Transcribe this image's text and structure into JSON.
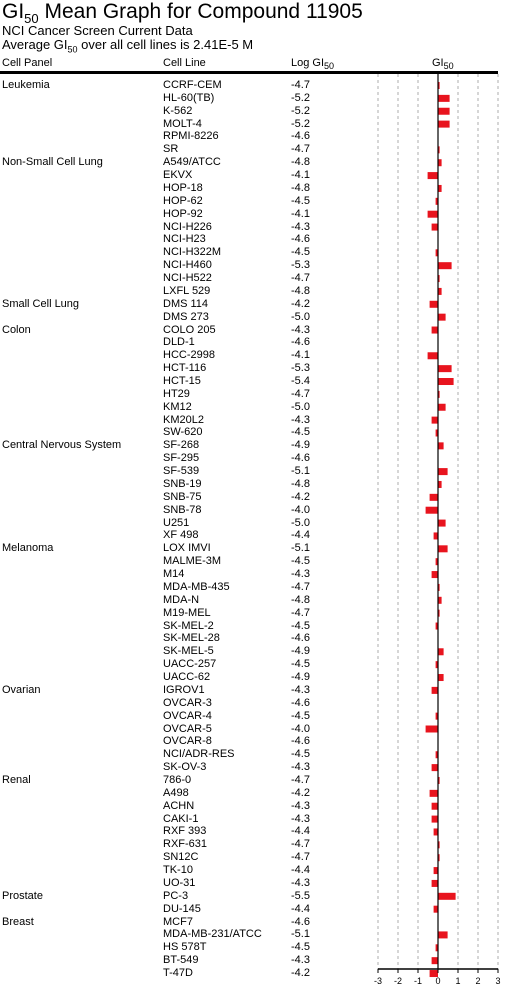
{
  "title_main": "GI",
  "title_sub": "50",
  "title_rest": " Mean Graph for Compound 11905",
  "subtitle": "NCI Cancer Screen Current Data",
  "average_pre": "Average GI",
  "average_sub": "50",
  "average_post": " over all cell lines is 2.41E-5 M",
  "headers": {
    "cell_panel": "Cell Panel",
    "cell_line": "Cell Line",
    "log_main": "Log GI",
    "log_sub": "50",
    "gi_main": "GI",
    "gi_sub": "50"
  },
  "colors": {
    "bar": "#e8141e",
    "text": "#000000",
    "grid": "#9a9a9a"
  },
  "chart_data": {
    "type": "bar",
    "title": "GI50 Mean Graph for Compound 11905",
    "mean_log_gi50": -4.62,
    "xlim": [
      -3,
      3
    ],
    "x_ticks": [
      "-3",
      "-2",
      "-1",
      "0",
      "1",
      "2",
      "3"
    ],
    "grid": true,
    "rows": [
      {
        "panel": "Leukemia",
        "line": "CCRF-CEM",
        "log": "-4.7",
        "dev": 0.08
      },
      {
        "panel": "",
        "line": "HL-60(TB)",
        "log": "-5.2",
        "dev": 0.58
      },
      {
        "panel": "",
        "line": "K-562",
        "log": "-5.2",
        "dev": 0.58
      },
      {
        "panel": "",
        "line": "MOLT-4",
        "log": "-5.2",
        "dev": 0.58
      },
      {
        "panel": "",
        "line": "RPMI-8226",
        "log": "-4.6",
        "dev": -0.02
      },
      {
        "panel": "",
        "line": "SR",
        "log": "-4.7",
        "dev": 0.08
      },
      {
        "panel": "Non-Small Cell Lung",
        "line": "A549/ATCC",
        "log": "-4.8",
        "dev": 0.18
      },
      {
        "panel": "",
        "line": "EKVX",
        "log": "-4.1",
        "dev": -0.52
      },
      {
        "panel": "",
        "line": "HOP-18",
        "log": "-4.8",
        "dev": 0.18
      },
      {
        "panel": "",
        "line": "HOP-62",
        "log": "-4.5",
        "dev": -0.12
      },
      {
        "panel": "",
        "line": "HOP-92",
        "log": "-4.1",
        "dev": -0.52
      },
      {
        "panel": "",
        "line": "NCI-H226",
        "log": "-4.3",
        "dev": -0.32
      },
      {
        "panel": "",
        "line": "NCI-H23",
        "log": "-4.6",
        "dev": -0.02
      },
      {
        "panel": "",
        "line": "NCI-H322M",
        "log": "-4.5",
        "dev": -0.12
      },
      {
        "panel": "",
        "line": "NCI-H460",
        "log": "-5.3",
        "dev": 0.68
      },
      {
        "panel": "",
        "line": "NCI-H522",
        "log": "-4.7",
        "dev": 0.08
      },
      {
        "panel": "",
        "line": "LXFL 529",
        "log": "-4.8",
        "dev": 0.18
      },
      {
        "panel": "Small Cell Lung",
        "line": "DMS 114",
        "log": "-4.2",
        "dev": -0.42
      },
      {
        "panel": "",
        "line": "DMS 273",
        "log": "-5.0",
        "dev": 0.38
      },
      {
        "panel": "Colon",
        "line": "COLO 205",
        "log": "-4.3",
        "dev": -0.32
      },
      {
        "panel": "",
        "line": "DLD-1",
        "log": "-4.6",
        "dev": -0.02
      },
      {
        "panel": "",
        "line": "HCC-2998",
        "log": "-4.1",
        "dev": -0.52
      },
      {
        "panel": "",
        "line": "HCT-116",
        "log": "-5.3",
        "dev": 0.68
      },
      {
        "panel": "",
        "line": "HCT-15",
        "log": "-5.4",
        "dev": 0.78
      },
      {
        "panel": "",
        "line": "HT29",
        "log": "-4.7",
        "dev": 0.08
      },
      {
        "panel": "",
        "line": "KM12",
        "log": "-5.0",
        "dev": 0.38
      },
      {
        "panel": "",
        "line": "KM20L2",
        "log": "-4.3",
        "dev": -0.32
      },
      {
        "panel": "",
        "line": "SW-620",
        "log": "-4.5",
        "dev": -0.12
      },
      {
        "panel": "Central Nervous System",
        "line": "SF-268",
        "log": "-4.9",
        "dev": 0.28
      },
      {
        "panel": "",
        "line": "SF-295",
        "log": "-4.6",
        "dev": -0.02
      },
      {
        "panel": "",
        "line": "SF-539",
        "log": "-5.1",
        "dev": 0.48
      },
      {
        "panel": "",
        "line": "SNB-19",
        "log": "-4.8",
        "dev": 0.18
      },
      {
        "panel": "",
        "line": "SNB-75",
        "log": "-4.2",
        "dev": -0.42
      },
      {
        "panel": "",
        "line": "SNB-78",
        "log": "-4.0",
        "dev": -0.62
      },
      {
        "panel": "",
        "line": "U251",
        "log": "-5.0",
        "dev": 0.38
      },
      {
        "panel": "",
        "line": "XF 498",
        "log": "-4.4",
        "dev": -0.22
      },
      {
        "panel": "Melanoma",
        "line": "LOX IMVI",
        "log": "-5.1",
        "dev": 0.48
      },
      {
        "panel": "",
        "line": "MALME-3M",
        "log": "-4.5",
        "dev": -0.12
      },
      {
        "panel": "",
        "line": "M14",
        "log": "-4.3",
        "dev": -0.32
      },
      {
        "panel": "",
        "line": "MDA-MB-435",
        "log": "-4.7",
        "dev": 0.08
      },
      {
        "panel": "",
        "line": "MDA-N",
        "log": "-4.8",
        "dev": 0.18
      },
      {
        "panel": "",
        "line": "M19-MEL",
        "log": "-4.7",
        "dev": 0.08
      },
      {
        "panel": "",
        "line": "SK-MEL-2",
        "log": "-4.5",
        "dev": -0.12
      },
      {
        "panel": "",
        "line": "SK-MEL-28",
        "log": "-4.6",
        "dev": -0.02
      },
      {
        "panel": "",
        "line": "SK-MEL-5",
        "log": "-4.9",
        "dev": 0.28
      },
      {
        "panel": "",
        "line": "UACC-257",
        "log": "-4.5",
        "dev": -0.12
      },
      {
        "panel": "",
        "line": "UACC-62",
        "log": "-4.9",
        "dev": 0.28
      },
      {
        "panel": "Ovarian",
        "line": "IGROV1",
        "log": "-4.3",
        "dev": -0.32
      },
      {
        "panel": "",
        "line": "OVCAR-3",
        "log": "-4.6",
        "dev": -0.02
      },
      {
        "panel": "",
        "line": "OVCAR-4",
        "log": "-4.5",
        "dev": -0.12
      },
      {
        "panel": "",
        "line": "OVCAR-5",
        "log": "-4.0",
        "dev": -0.62
      },
      {
        "panel": "",
        "line": "OVCAR-8",
        "log": "-4.6",
        "dev": -0.02
      },
      {
        "panel": "",
        "line": "NCI/ADR-RES",
        "log": "-4.5",
        "dev": -0.12
      },
      {
        "panel": "",
        "line": "SK-OV-3",
        "log": "-4.3",
        "dev": -0.32
      },
      {
        "panel": "Renal",
        "line": "786-0",
        "log": "-4.7",
        "dev": 0.08
      },
      {
        "panel": "",
        "line": "A498",
        "log": "-4.2",
        "dev": -0.42
      },
      {
        "panel": "",
        "line": "ACHN",
        "log": "-4.3",
        "dev": -0.32
      },
      {
        "panel": "",
        "line": "CAKI-1",
        "log": "-4.3",
        "dev": -0.32
      },
      {
        "panel": "",
        "line": "RXF 393",
        "log": "-4.4",
        "dev": -0.22
      },
      {
        "panel": "",
        "line": "RXF-631",
        "log": "-4.7",
        "dev": 0.08
      },
      {
        "panel": "",
        "line": "SN12C",
        "log": "-4.7",
        "dev": 0.08
      },
      {
        "panel": "",
        "line": "TK-10",
        "log": "-4.4",
        "dev": -0.22
      },
      {
        "panel": "",
        "line": "UO-31",
        "log": "-4.3",
        "dev": -0.32
      },
      {
        "panel": "Prostate",
        "line": "PC-3",
        "log": "-5.5",
        "dev": 0.88
      },
      {
        "panel": "",
        "line": "DU-145",
        "log": "-4.4",
        "dev": -0.22
      },
      {
        "panel": "Breast",
        "line": "MCF7",
        "log": "-4.6",
        "dev": -0.02
      },
      {
        "panel": "",
        "line": "MDA-MB-231/ATCC",
        "log": "-5.1",
        "dev": 0.48
      },
      {
        "panel": "",
        "line": "HS 578T",
        "log": "-4.5",
        "dev": -0.12
      },
      {
        "panel": "",
        "line": "BT-549",
        "log": "-4.3",
        "dev": -0.32
      },
      {
        "panel": "",
        "line": "T-47D",
        "log": "-4.2",
        "dev": -0.42
      }
    ]
  }
}
